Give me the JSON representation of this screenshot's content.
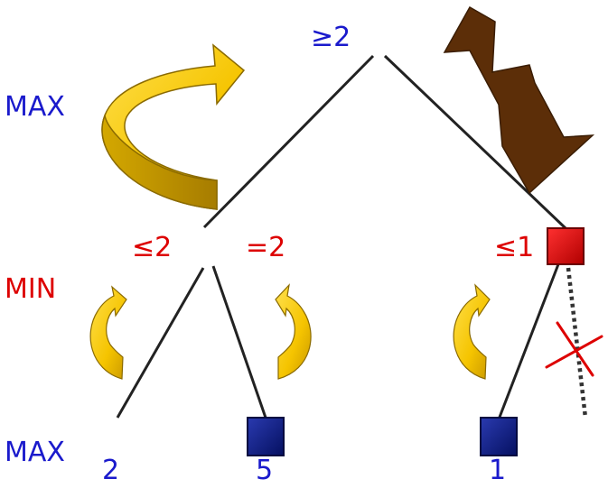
{
  "level_labels": {
    "max_top": "MAX",
    "min_mid": "MIN",
    "max_bottom": "MAX"
  },
  "node_values": {
    "root": "≥2",
    "left_min": "≤2",
    "left_min_updated": "=2",
    "right_min": "≤1",
    "leaf_1": "2",
    "leaf_2": "5",
    "leaf_3": "1"
  },
  "colors": {
    "blue_text": "#1a1acc",
    "red_text": "#dd0000",
    "gold_arrow": "#f5c400",
    "brown_arrow": "#5c2e08",
    "min_node": "#dd0000",
    "leaf_node": "#0a1a8c",
    "edge": "#222222",
    "pruned_mark": "#dd0000"
  },
  "icons": [
    "curved-up-arrow-icon",
    "bent-down-arrow-icon",
    "prune-cross-icon"
  ]
}
